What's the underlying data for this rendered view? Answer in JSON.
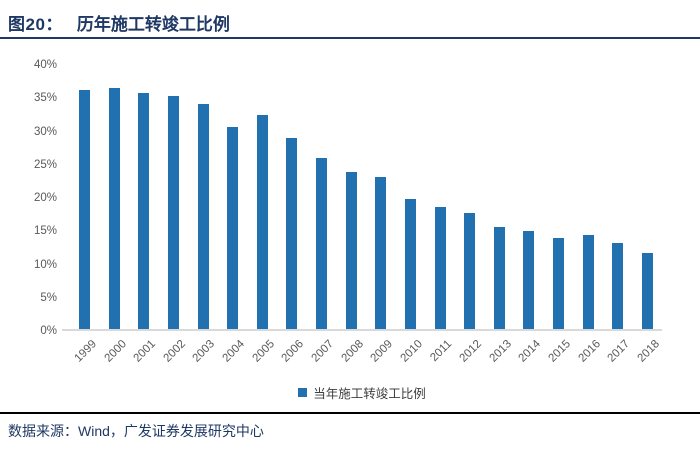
{
  "figure": {
    "label": "图20：",
    "title": "历年施工转竣工比例"
  },
  "chart_data": {
    "type": "bar",
    "title": "历年施工转竣工比例",
    "categories": [
      "1999",
      "2000",
      "2001",
      "2002",
      "2003",
      "2004",
      "2005",
      "2006",
      "2007",
      "2008",
      "2009",
      "2010",
      "2011",
      "2012",
      "2013",
      "2014",
      "2015",
      "2016",
      "2017",
      "2018"
    ],
    "values": [
      35.9,
      36.3,
      35.5,
      35.1,
      33.9,
      30.4,
      32.2,
      28.7,
      25.7,
      23.6,
      22.8,
      19.6,
      18.3,
      17.4,
      15.3,
      14.8,
      13.7,
      14.1,
      13.0,
      11.4
    ],
    "unit": "%",
    "legend": [
      "当年施工转竣工比例"
    ],
    "legend_position": "bottom",
    "ylim": [
      0,
      40
    ],
    "yticks": [
      "40%",
      "35%",
      "30%",
      "25%",
      "20%",
      "15%",
      "10%",
      "5%",
      "0%"
    ],
    "xlabel": "",
    "ylabel": "",
    "grid": false
  },
  "footer": {
    "source": "数据来源：Wind，广发证券发展研究中心"
  },
  "colors": {
    "bar": "#2171B0",
    "title_text": "#1F3864",
    "header_rule": "#1F3864",
    "axis_label": "#595959",
    "axis_line": "#D9D9D9",
    "legend_text": "#404040",
    "footer_rule": "#000000",
    "footer_text": "#1F3864"
  }
}
